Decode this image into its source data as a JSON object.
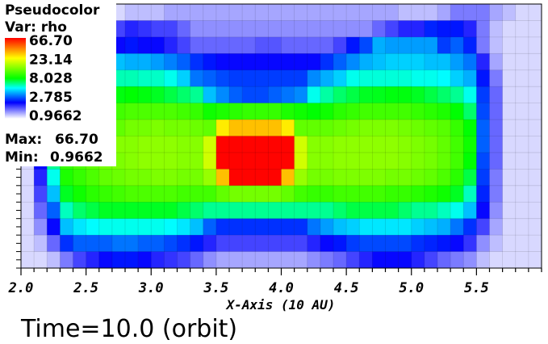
{
  "legend": {
    "plot_type": "Pseudocolor",
    "var_label": "Var: rho",
    "max_label": "Max:",
    "max_value": "66.70",
    "min_label": "Min:",
    "min_value": "0.9662",
    "gradient_colors": [
      "#ff0000",
      "#ffff00",
      "#00ff00",
      "#00ffff",
      "#0000ff",
      "#ffffff"
    ]
  },
  "time_annotation": "Time=10.0 (orbit)",
  "chart_data": {
    "type": "heatmap",
    "variable": "rho",
    "color_scale": "log",
    "xlabel": "X-Axis (10 AU)",
    "xlim": [
      2.0,
      6.0
    ],
    "x_ticks": [
      2.0,
      2.5,
      3.0,
      3.5,
      4.0,
      4.5,
      5.0,
      5.5
    ],
    "x_tick_labels": [
      "2.0",
      "2.5",
      "3.0",
      "3.5",
      "4.0",
      "4.5",
      "5.0",
      "5.5"
    ],
    "x_minor_step": 0.1,
    "y_ticks_count": 33,
    "colorbar_ticks": [
      66.7,
      23.14,
      8.028,
      2.785,
      0.9662
    ],
    "colorbar_tick_labels": [
      "66.70",
      "23.14",
      "8.028",
      "2.785",
      "0.9662"
    ],
    "vmin": 0.9662,
    "vmax": 66.7,
    "grid": {
      "x_start": 1.9,
      "x_end": 6.0,
      "cell_width": 0.1,
      "rows": 16,
      "cols": 41,
      "values": [
        [
          1.1,
          1.1,
          1.1,
          1.1,
          1.1,
          1.1,
          1.1,
          1.1,
          1.1,
          1.2,
          1.2,
          1.2,
          1.3,
          1.3,
          1.3,
          1.3,
          1.3,
          1.3,
          1.3,
          1.3,
          1.3,
          1.3,
          1.3,
          1.3,
          1.3,
          1.3,
          1.3,
          1.3,
          1.3,
          1.3,
          1.2,
          1.2,
          1.2,
          1.3,
          1.5,
          1.5,
          1.5,
          1.3,
          1.2,
          1.1,
          1.1
        ],
        [
          1.1,
          1.1,
          1.1,
          1.1,
          1.1,
          1.3,
          1.8,
          1.8,
          1.8,
          2.0,
          1.9,
          1.8,
          1.8,
          1.6,
          1.4,
          1.4,
          1.4,
          1.4,
          1.4,
          1.4,
          1.4,
          1.4,
          1.4,
          1.4,
          1.4,
          1.4,
          1.4,
          1.4,
          1.6,
          1.8,
          2.0,
          2.0,
          2.5,
          2.4,
          2.4,
          2.0,
          1.5,
          1.2,
          1.1,
          1.1,
          1.1
        ],
        [
          1.1,
          1.1,
          1.1,
          1.1,
          2.0,
          2.6,
          2.7,
          2.5,
          2.2,
          2.4,
          2.2,
          2.2,
          2.0,
          1.8,
          1.6,
          1.6,
          1.6,
          1.6,
          1.6,
          1.7,
          1.7,
          1.6,
          1.6,
          1.6,
          1.6,
          1.8,
          2.4,
          2.8,
          3.8,
          3.6,
          3.6,
          3.6,
          3.6,
          2.7,
          3.0,
          2.5,
          1.5,
          1.2,
          1.1,
          1.1,
          1.1
        ],
        [
          1.1,
          1.1,
          1.2,
          1.4,
          2.6,
          3.6,
          3.6,
          4.0,
          4.0,
          3.8,
          3.8,
          3.6,
          3.3,
          3.0,
          2.6,
          2.4,
          2.2,
          2.2,
          2.2,
          2.2,
          2.2,
          2.2,
          2.2,
          2.2,
          2.6,
          3.0,
          3.4,
          3.8,
          4.0,
          4.2,
          4.2,
          4.2,
          4.0,
          4.0,
          3.6,
          3.2,
          2.0,
          1.3,
          1.1,
          1.1,
          1.1
        ],
        [
          1.1,
          1.1,
          1.4,
          2.0,
          4.2,
          4.8,
          5.2,
          5.5,
          5.6,
          5.6,
          5.4,
          5.4,
          5.0,
          4.2,
          3.2,
          3.0,
          2.8,
          2.7,
          2.7,
          2.7,
          2.7,
          2.7,
          2.7,
          3.4,
          3.8,
          4.2,
          5.0,
          5.2,
          5.2,
          5.2,
          5.2,
          5.0,
          5.0,
          4.8,
          4.2,
          3.8,
          2.4,
          1.5,
          1.1,
          1.1,
          1.1
        ],
        [
          1.1,
          1.1,
          1.6,
          3.0,
          6.0,
          6.5,
          7.0,
          7.5,
          7.8,
          8.0,
          7.8,
          7.5,
          7.0,
          6.5,
          6.0,
          4.0,
          3.4,
          3.0,
          2.8,
          2.8,
          3.0,
          3.2,
          3.4,
          5.0,
          5.8,
          6.5,
          7.0,
          7.5,
          7.6,
          7.8,
          7.8,
          7.5,
          7.0,
          6.5,
          6.0,
          5.0,
          2.7,
          1.6,
          1.1,
          1.1,
          1.1
        ],
        [
          1.1,
          1.1,
          1.8,
          4.0,
          7.5,
          8.5,
          9.5,
          10.0,
          10.5,
          11.0,
          11.0,
          11.0,
          11.0,
          10.5,
          10.0,
          8.5,
          9.0,
          9.5,
          10.0,
          10.0,
          10.0,
          9.0,
          8.5,
          8.0,
          8.5,
          9.5,
          10.0,
          10.5,
          10.5,
          10.5,
          10.5,
          10.0,
          9.5,
          9.0,
          8.0,
          6.5,
          2.8,
          1.6,
          1.1,
          1.1,
          1.1
        ],
        [
          1.1,
          1.1,
          2.0,
          5.0,
          9.0,
          10.0,
          11.0,
          11.5,
          12.0,
          13.0,
          13.0,
          13.5,
          13.0,
          13.0,
          12.5,
          12.0,
          25.0,
          30.0,
          30.0,
          30.0,
          30.0,
          25.0,
          12.0,
          12.0,
          12.0,
          12.5,
          13.0,
          13.5,
          13.5,
          13.5,
          13.0,
          12.5,
          12.0,
          11.5,
          10.0,
          8.0,
          3.0,
          1.6,
          1.1,
          1.1,
          1.1
        ],
        [
          1.1,
          1.1,
          2.2,
          6.0,
          10.0,
          11.0,
          12.5,
          13.0,
          14.0,
          14.0,
          14.5,
          14.5,
          14.5,
          14.0,
          14.0,
          19.0,
          66.0,
          66.0,
          66.0,
          66.0,
          66.0,
          66.0,
          19.0,
          14.0,
          14.0,
          14.5,
          14.5,
          14.5,
          14.5,
          14.5,
          14.0,
          13.5,
          13.0,
          12.0,
          10.5,
          8.5,
          3.0,
          1.6,
          1.1,
          1.1,
          1.1
        ],
        [
          1.1,
          1.1,
          2.2,
          6.0,
          10.0,
          11.0,
          12.0,
          13.0,
          13.5,
          14.0,
          14.5,
          14.5,
          14.5,
          14.0,
          14.0,
          19.0,
          66.0,
          66.0,
          66.0,
          66.0,
          66.0,
          66.0,
          19.0,
          14.0,
          14.0,
          14.5,
          14.5,
          14.5,
          14.5,
          14.5,
          14.0,
          13.5,
          13.0,
          12.0,
          10.5,
          8.0,
          2.8,
          1.6,
          1.1,
          1.1,
          1.1
        ],
        [
          1.1,
          1.1,
          2.0,
          5.0,
          9.0,
          10.0,
          11.0,
          12.0,
          12.5,
          13.0,
          13.0,
          13.5,
          13.5,
          13.0,
          13.0,
          15.0,
          30.0,
          66.0,
          66.0,
          66.0,
          66.0,
          30.0,
          15.0,
          13.0,
          13.0,
          13.5,
          13.5,
          13.5,
          13.5,
          13.0,
          13.0,
          12.5,
          12.0,
          11.0,
          9.5,
          7.0,
          2.7,
          1.5,
          1.1,
          1.1,
          1.1
        ],
        [
          1.1,
          1.1,
          1.8,
          4.0,
          7.5,
          8.5,
          9.5,
          10.0,
          10.5,
          11.0,
          11.0,
          11.0,
          11.0,
          10.5,
          10.5,
          10.5,
          12.0,
          13.0,
          13.0,
          13.0,
          13.0,
          12.0,
          10.5,
          10.0,
          10.0,
          10.5,
          10.5,
          10.5,
          10.5,
          10.0,
          10.0,
          9.5,
          9.0,
          8.5,
          7.5,
          5.5,
          2.5,
          1.5,
          1.1,
          1.1,
          1.1
        ],
        [
          1.1,
          1.1,
          1.6,
          3.0,
          5.5,
          6.5,
          7.0,
          7.5,
          7.5,
          7.5,
          7.5,
          7.5,
          7.5,
          7.0,
          6.5,
          6.0,
          6.0,
          6.0,
          6.0,
          6.0,
          6.0,
          6.0,
          6.0,
          6.0,
          6.0,
          6.5,
          7.0,
          7.0,
          7.0,
          7.0,
          6.5,
          6.0,
          6.0,
          5.5,
          5.0,
          4.0,
          2.2,
          1.4,
          1.1,
          1.1,
          1.1
        ],
        [
          1.1,
          1.1,
          1.4,
          2.2,
          4.0,
          4.5,
          4.8,
          5.0,
          5.0,
          5.0,
          5.0,
          5.0,
          4.8,
          4.5,
          4.0,
          3.0,
          2.6,
          2.6,
          2.6,
          2.6,
          2.6,
          2.6,
          2.6,
          3.2,
          3.6,
          4.0,
          4.2,
          4.5,
          4.5,
          4.5,
          4.5,
          4.2,
          4.0,
          3.8,
          3.2,
          2.6,
          1.8,
          1.3,
          1.1,
          1.1,
          1.1
        ],
        [
          1.1,
          1.1,
          1.2,
          1.6,
          2.6,
          3.0,
          3.0,
          3.0,
          3.2,
          3.2,
          3.0,
          3.0,
          2.8,
          2.6,
          2.4,
          2.0,
          1.8,
          1.8,
          1.8,
          1.8,
          1.8,
          1.8,
          1.8,
          2.0,
          2.2,
          2.4,
          2.7,
          2.8,
          2.8,
          2.8,
          2.8,
          2.6,
          2.5,
          2.4,
          2.2,
          1.9,
          1.4,
          1.2,
          1.1,
          1.1,
          1.1
        ],
        [
          1.1,
          1.1,
          1.1,
          1.2,
          1.5,
          1.8,
          2.0,
          2.2,
          2.4,
          2.4,
          2.2,
          2.0,
          1.9,
          1.8,
          1.6,
          1.4,
          1.3,
          1.3,
          1.3,
          1.3,
          1.3,
          1.3,
          1.3,
          1.4,
          1.5,
          1.6,
          1.8,
          2.0,
          2.2,
          2.2,
          2.2,
          2.0,
          1.8,
          1.6,
          1.5,
          1.4,
          1.2,
          1.1,
          1.1,
          1.1,
          1.1
        ]
      ]
    }
  }
}
